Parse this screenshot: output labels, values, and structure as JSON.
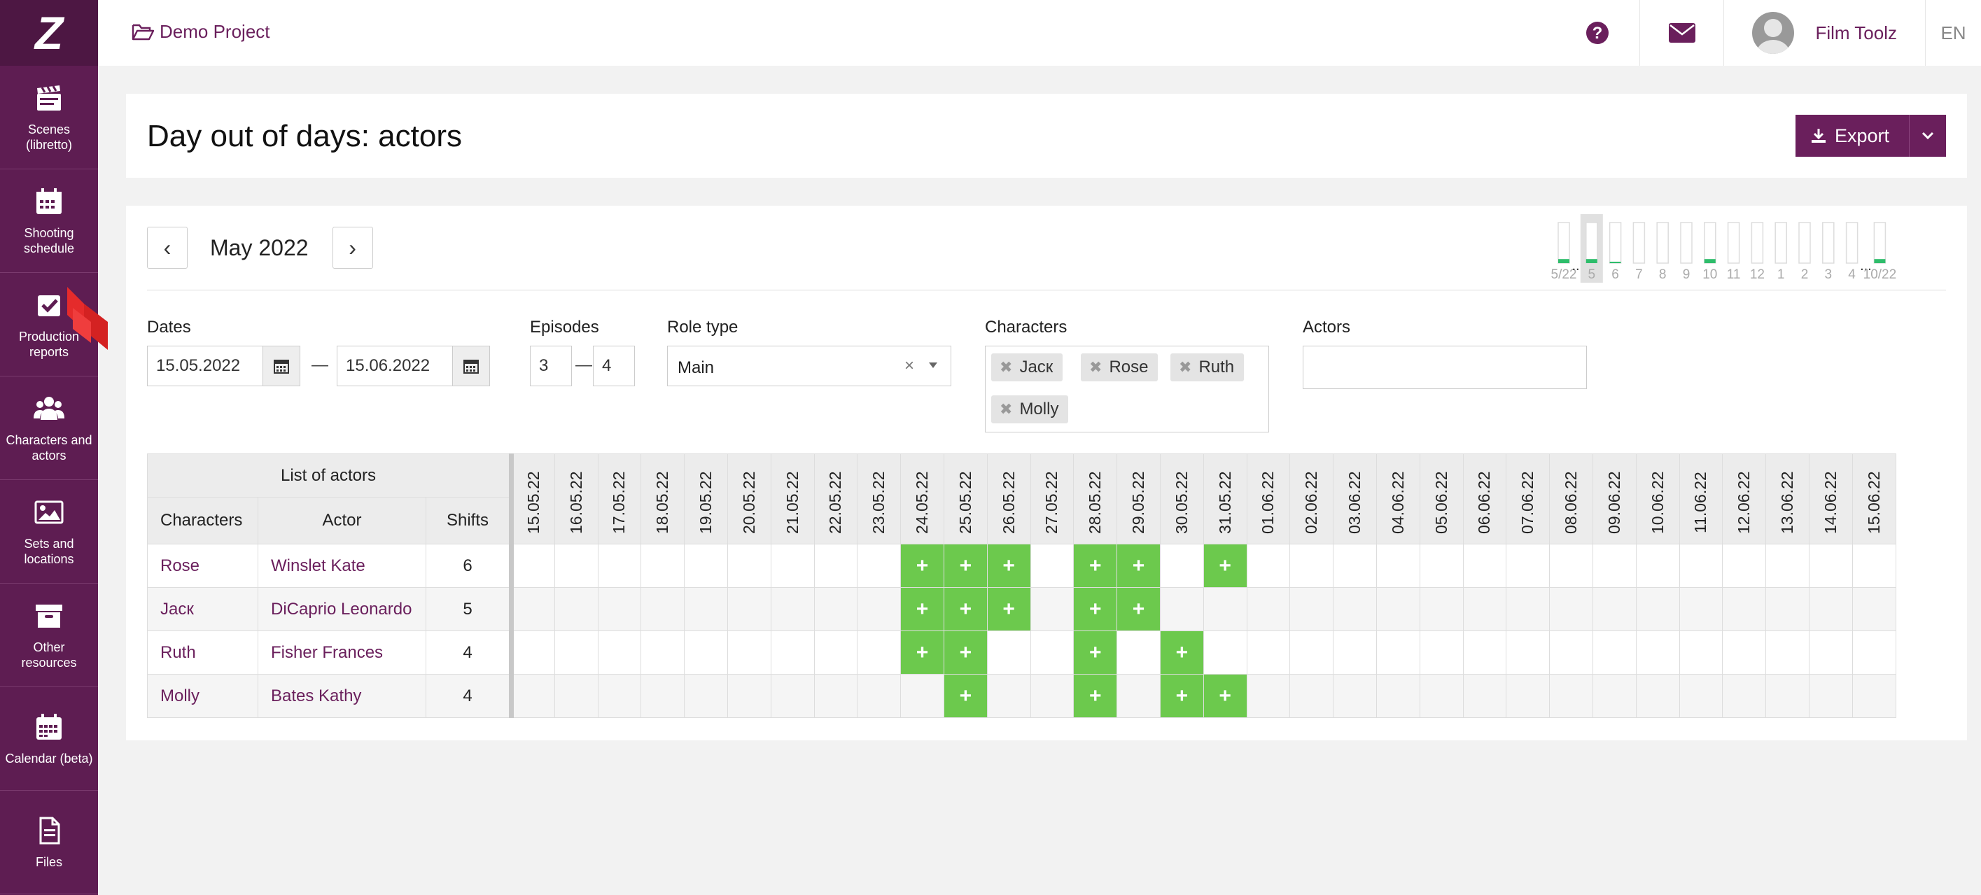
{
  "sidebar": {
    "logo": "Z",
    "items": [
      {
        "label": "Scenes (libretto)",
        "icon": "clapperboard-icon"
      },
      {
        "label": "Shooting schedule",
        "icon": "calendar-icon"
      },
      {
        "label": "Production reports",
        "icon": "report-check-icon"
      },
      {
        "label": "Characters and actors",
        "icon": "people-icon"
      },
      {
        "label": "Sets and locations",
        "icon": "image-icon"
      },
      {
        "label": "Other resources",
        "icon": "archive-box-icon"
      },
      {
        "label": "Calendar (beta)",
        "icon": "calendar-grid-icon"
      },
      {
        "label": "Files",
        "icon": "file-icon"
      }
    ]
  },
  "topbar": {
    "project": "Demo Project",
    "user_name": "Film Toolz",
    "language": "EN"
  },
  "header": {
    "title": "Day out of days: actors",
    "export_label": "Export"
  },
  "month_nav": {
    "prev": "‹",
    "label": "May 2022",
    "next": "›"
  },
  "mini_strip": {
    "bars": [
      {
        "label": "5/22",
        "level": 0.2,
        "gap_after": true
      },
      {
        "label": "5",
        "level": 0.2,
        "selected": true
      },
      {
        "label": "6",
        "level": 0.05
      },
      {
        "label": "7",
        "level": 0
      },
      {
        "label": "8",
        "level": 0
      },
      {
        "label": "9",
        "level": 0
      },
      {
        "label": "10",
        "level": 0.2
      },
      {
        "label": "11",
        "level": 0
      },
      {
        "label": "12",
        "level": 0
      },
      {
        "label": "1",
        "level": 0
      },
      {
        "label": "2",
        "level": 0
      },
      {
        "label": "3",
        "level": 0
      },
      {
        "label": "4",
        "level": 0,
        "gap_after": true
      },
      {
        "label": "10/22",
        "level": 0.2
      }
    ],
    "ellipsis": "..."
  },
  "filters": {
    "dates_label": "Dates",
    "date_from": "15.05.2022",
    "date_to": "15.06.2022",
    "dash": "—",
    "episodes_label": "Episodes",
    "episode_from": "3",
    "episode_to": "4",
    "role_type_label": "Role type",
    "role_type_value": "Main",
    "role_clear": "×",
    "characters_label": "Characters",
    "characters": [
      "Jacк",
      "Rose",
      "Ruth",
      "Molly"
    ],
    "actors_label": "Actors",
    "actors_value": ""
  },
  "table": {
    "group_header": "List of actors",
    "col_characters": "Characters",
    "col_actor": "Actor",
    "col_shifts": "Shifts",
    "dates": [
      "15.05.22",
      "16.05.22",
      "17.05.22",
      "18.05.22",
      "19.05.22",
      "20.05.22",
      "21.05.22",
      "22.05.22",
      "23.05.22",
      "24.05.22",
      "25.05.22",
      "26.05.22",
      "27.05.22",
      "28.05.22",
      "29.05.22",
      "30.05.22",
      "31.05.22",
      "01.06.22",
      "02.06.22",
      "03.06.22",
      "04.06.22",
      "05.06.22",
      "06.06.22",
      "07.06.22",
      "08.06.22",
      "09.06.22",
      "10.06.22",
      "11.06.22",
      "12.06.22",
      "13.06.22",
      "14.06.22",
      "15.06.22"
    ],
    "mark": "+",
    "rows": [
      {
        "character": "Rose",
        "actor": "Winslet Kate",
        "shifts": "6",
        "days": [
          9,
          10,
          11,
          13,
          14,
          16
        ]
      },
      {
        "character": "Jacк",
        "actor": "DiCaprio Leonardo",
        "shifts": "5",
        "days": [
          9,
          10,
          11,
          13,
          14
        ]
      },
      {
        "character": "Ruth",
        "actor": "Fisher Frances",
        "shifts": "4",
        "days": [
          9,
          10,
          13,
          15
        ]
      },
      {
        "character": "Molly",
        "actor": "Bates Kathy",
        "shifts": "4",
        "days": [
          10,
          13,
          15,
          16
        ]
      }
    ]
  },
  "colors": {
    "brand": "#5e1d52",
    "accent": "#6a1f5c",
    "active_day": "#6cc94d",
    "strip_green": "#2ebd6b"
  }
}
